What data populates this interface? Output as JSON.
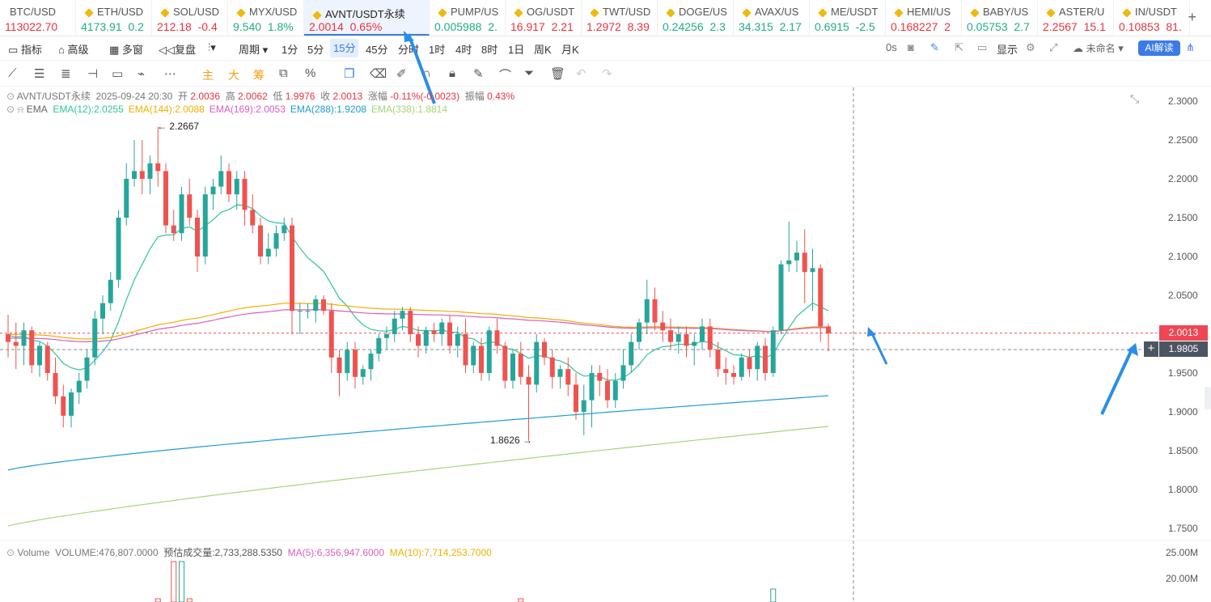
{
  "tickers": [
    {
      "symbol": "BTC/USD",
      "price": "113022.70",
      "change": "",
      "dir": "red"
    },
    {
      "symbol": "ETH/USD",
      "price": "4173.91",
      "change": "0.2",
      "dir": "grn"
    },
    {
      "symbol": "SOL/USD",
      "price": "212.18",
      "change": "-0.4",
      "dir": "red"
    },
    {
      "symbol": "MYX/USD",
      "price": "9.540",
      "change": "1.8%",
      "dir": "grn"
    },
    {
      "symbol": "AVNT/USDT永续",
      "price": "2.0014",
      "change": "0.65%",
      "dir": "red",
      "active": true
    },
    {
      "symbol": "PUMP/US",
      "price": "0.005988",
      "change": "2.",
      "dir": "grn"
    },
    {
      "symbol": "OG/USDT",
      "price": "16.917",
      "change": "2.21",
      "dir": "red"
    },
    {
      "symbol": "TWT/USD",
      "price": "1.2972",
      "change": "8.39",
      "dir": "red"
    },
    {
      "symbol": "DOGE/US",
      "price": "0.24256",
      "change": "2.3",
      "dir": "grn"
    },
    {
      "symbol": "AVAX/US",
      "price": "34.315",
      "change": "2.17",
      "dir": "grn"
    },
    {
      "symbol": "ME/USDT",
      "price": "0.6915",
      "change": "-2.5",
      "dir": "grn"
    },
    {
      "symbol": "HEMI/US",
      "price": "0.168227",
      "change": "2",
      "dir": "red"
    },
    {
      "symbol": "BABY/US",
      "price": "0.05753",
      "change": "2.7",
      "dir": "grn"
    },
    {
      "symbol": "ASTER/U",
      "price": "2.2567",
      "change": "15.1",
      "dir": "red"
    },
    {
      "symbol": "IN/USDT",
      "price": "0.10853",
      "change": "81.",
      "dir": "red"
    }
  ],
  "toolbar": {
    "indicators": "指标",
    "advanced": "高级",
    "multi_window": "多窗",
    "replay": "复盘",
    "period": "周期",
    "intervals": [
      "1分",
      "5分",
      "15分",
      "45分",
      "分时",
      "1时",
      "4时",
      "8时",
      "1日",
      "周K",
      "月K"
    ],
    "selected_interval": "15分",
    "countdown": "0s",
    "display": "显示",
    "unnamed": "未命名",
    "ai_read": "AI解读"
  },
  "drawing_tools": {
    "main": "主",
    "big": "大",
    "chips": "筹"
  },
  "ohlc_legend": {
    "title": "AVNT/USDT永续",
    "time": "2025-09-24 20:30",
    "open_label": "开",
    "open": "2.0036",
    "high_label": "高",
    "high": "2.0062",
    "low_label": "低",
    "low": "1.9976",
    "close_label": "收",
    "close": "2.0013",
    "change_label": "涨幅",
    "change": "-0.11%(-0.0023)",
    "amp_label": "振幅",
    "amp": "0.43%"
  },
  "ema_legend": {
    "name": "EMA",
    "items": [
      {
        "label": "EMA(12):2.0255",
        "color": "#2ec59a"
      },
      {
        "label": "EMA(144):2.0088",
        "color": "#f0b000"
      },
      {
        "label": "EMA(169):2.0053",
        "color": "#d85ec0"
      },
      {
        "label": "EMA(288):1.9208",
        "color": "#1f9bd6"
      },
      {
        "label": "EMA(338):1.8814",
        "color": "#a6d57a"
      }
    ]
  },
  "volume_legend": {
    "name": "Volume",
    "volume": "VOLUME:476,807.0000",
    "estimate": "预估成交量:2,733,288.5350",
    "ma5": "MA(5):6,356,947.6000",
    "ma10": "MA(10):7,714,253.7000"
  },
  "price_axis": [
    "2.3000",
    "2.2500",
    "2.2000",
    "2.1500",
    "2.1000",
    "2.0500",
    "2.0000",
    "1.9500",
    "1.9000",
    "1.8500",
    "1.8000",
    "1.7500"
  ],
  "volume_axis": [
    "25.00M",
    "20.00M"
  ],
  "current_price": "2.0013",
  "crosshair_price": "1.9805",
  "high_marker": "2.2667",
  "low_marker": "1.8626",
  "colors": {
    "up": "#26a69a",
    "down": "#ef5350",
    "accent": "#3b7be6"
  },
  "chart_data": {
    "type": "candlestick",
    "interval": "15分",
    "candles": [
      [
        2.0,
        2.025,
        1.97,
        1.99
      ],
      [
        1.99,
        2.015,
        1.955,
        1.985
      ],
      [
        1.985,
        2.015,
        1.96,
        2.005
      ],
      [
        2.005,
        2.01,
        1.95,
        1.96
      ],
      [
        1.96,
        1.99,
        1.945,
        1.985
      ],
      [
        1.985,
        1.99,
        1.94,
        1.95
      ],
      [
        1.95,
        1.97,
        1.91,
        1.92
      ],
      [
        1.92,
        1.935,
        1.88,
        1.895
      ],
      [
        1.895,
        1.93,
        1.88,
        1.925
      ],
      [
        1.925,
        1.95,
        1.91,
        1.94
      ],
      [
        1.94,
        1.98,
        1.93,
        1.97
      ],
      [
        1.97,
        2.03,
        1.96,
        2.02
      ],
      [
        2.02,
        2.05,
        2.0,
        2.04
      ],
      [
        2.04,
        2.08,
        2.03,
        2.07
      ],
      [
        2.07,
        2.16,
        2.06,
        2.15
      ],
      [
        2.15,
        2.22,
        2.14,
        2.2
      ],
      [
        2.2,
        2.25,
        2.19,
        2.21
      ],
      [
        2.21,
        2.25,
        2.18,
        2.2
      ],
      [
        2.2,
        2.23,
        2.18,
        2.22
      ],
      [
        2.22,
        2.267,
        2.19,
        2.21
      ],
      [
        2.21,
        2.22,
        2.13,
        2.14
      ],
      [
        2.14,
        2.16,
        2.12,
        2.13
      ],
      [
        2.13,
        2.19,
        2.12,
        2.18
      ],
      [
        2.18,
        2.2,
        2.14,
        2.15
      ],
      [
        2.15,
        2.16,
        2.08,
        2.1
      ],
      [
        2.1,
        2.19,
        2.09,
        2.18
      ],
      [
        2.18,
        2.2,
        2.16,
        2.19
      ],
      [
        2.19,
        2.23,
        2.18,
        2.21
      ],
      [
        2.21,
        2.22,
        2.17,
        2.18
      ],
      [
        2.18,
        2.21,
        2.16,
        2.2
      ],
      [
        2.2,
        2.21,
        2.14,
        2.16
      ],
      [
        2.16,
        2.18,
        2.13,
        2.14
      ],
      [
        2.14,
        2.15,
        2.09,
        2.1
      ],
      [
        2.1,
        2.13,
        2.09,
        2.11
      ],
      [
        2.11,
        2.14,
        2.1,
        2.13
      ],
      [
        2.13,
        2.15,
        2.12,
        2.14
      ],
      [
        2.14,
        2.15,
        2.0,
        2.03
      ],
      [
        2.03,
        2.04,
        2.0,
        2.03
      ],
      [
        2.03,
        2.04,
        2.02,
        2.03
      ],
      [
        2.03,
        2.05,
        2.015,
        2.045
      ],
      [
        2.045,
        2.05,
        2.025,
        2.03
      ],
      [
        2.03,
        2.04,
        1.95,
        1.97
      ],
      [
        1.97,
        1.98,
        1.92,
        1.95
      ],
      [
        1.95,
        1.99,
        1.94,
        1.98
      ],
      [
        1.98,
        1.99,
        1.93,
        1.945
      ],
      [
        1.945,
        1.96,
        1.935,
        1.955
      ],
      [
        1.955,
        1.98,
        1.94,
        1.975
      ],
      [
        1.975,
        2.0,
        1.965,
        1.995
      ],
      [
        1.995,
        2.01,
        1.98,
        2.0
      ],
      [
        2.0,
        2.03,
        1.99,
        2.02
      ],
      [
        2.02,
        2.035,
        2.005,
        2.03
      ],
      [
        2.03,
        2.035,
        1.99,
        2.0
      ],
      [
        2.0,
        2.01,
        1.97,
        1.985
      ],
      [
        1.985,
        2.01,
        1.975,
        2.005
      ],
      [
        2.005,
        2.015,
        1.99,
        2.0
      ],
      [
        2.0,
        2.02,
        1.985,
        2.015
      ],
      [
        2.015,
        2.025,
        1.975,
        1.985
      ],
      [
        1.985,
        2.01,
        1.97,
        2.0
      ],
      [
        2.0,
        2.02,
        1.95,
        1.96
      ],
      [
        1.96,
        1.99,
        1.95,
        1.985
      ],
      [
        1.985,
        1.995,
        1.94,
        1.95
      ],
      [
        1.95,
        2.01,
        1.94,
        2.005
      ],
      [
        2.005,
        2.02,
        1.975,
        1.985
      ],
      [
        1.985,
        1.99,
        1.93,
        1.94
      ],
      [
        1.94,
        1.98,
        1.93,
        1.975
      ],
      [
        1.975,
        1.99,
        1.935,
        1.945
      ],
      [
        1.945,
        1.96,
        1.863,
        1.935
      ],
      [
        1.935,
        2.0,
        1.925,
        1.99
      ],
      [
        1.99,
        1.995,
        1.96,
        1.97
      ],
      [
        1.97,
        1.98,
        1.93,
        1.945
      ],
      [
        1.945,
        1.96,
        1.93,
        1.955
      ],
      [
        1.955,
        1.97,
        1.92,
        1.935
      ],
      [
        1.935,
        1.95,
        1.89,
        1.9
      ],
      [
        1.9,
        1.935,
        1.87,
        1.915
      ],
      [
        1.915,
        1.96,
        1.88,
        1.95
      ],
      [
        1.95,
        1.96,
        1.92,
        1.94
      ],
      [
        1.94,
        1.955,
        1.905,
        1.915
      ],
      [
        1.915,
        1.95,
        1.905,
        1.94
      ],
      [
        1.94,
        1.98,
        1.93,
        1.96
      ],
      [
        1.96,
        2.0,
        1.95,
        1.99
      ],
      [
        1.99,
        2.02,
        1.98,
        2.015
      ],
      [
        2.015,
        2.07,
        2.0,
        2.045
      ],
      [
        2.045,
        2.06,
        2.005,
        2.015
      ],
      [
        2.015,
        2.03,
        1.99,
        2.005
      ],
      [
        2.005,
        2.02,
        1.98,
        1.99
      ],
      [
        1.99,
        2.01,
        1.975,
        2.0
      ],
      [
        2.0,
        2.01,
        1.97,
        1.985
      ],
      [
        1.985,
        2.0,
        1.96,
        1.99
      ],
      [
        1.99,
        2.02,
        1.98,
        2.01
      ],
      [
        2.01,
        2.02,
        1.97,
        1.98
      ],
      [
        1.98,
        1.99,
        1.945,
        1.955
      ],
      [
        1.955,
        1.97,
        1.935,
        1.95
      ],
      [
        1.95,
        1.96,
        1.935,
        1.945
      ],
      [
        1.945,
        1.975,
        1.94,
        1.97
      ],
      [
        1.97,
        1.98,
        1.945,
        1.955
      ],
      [
        1.955,
        1.99,
        1.94,
        1.985
      ],
      [
        1.985,
        1.995,
        1.94,
        1.95
      ],
      [
        1.95,
        2.01,
        1.945,
        2.005
      ],
      [
        2.005,
        2.095,
        2.0,
        2.09
      ],
      [
        2.09,
        2.145,
        2.08,
        2.095
      ],
      [
        2.095,
        2.12,
        2.08,
        2.105
      ],
      [
        2.105,
        2.135,
        2.04,
        2.08
      ],
      [
        2.08,
        2.11,
        2.03,
        2.085
      ],
      [
        2.085,
        2.09,
        1.99,
        2.01
      ],
      [
        2.01,
        2.014,
        1.978,
        2.001
      ]
    ]
  }
}
